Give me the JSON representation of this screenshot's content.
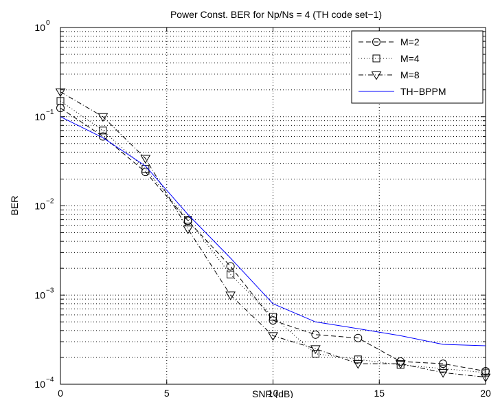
{
  "chart_data": {
    "type": "line",
    "title": "Power Const. BER for Np/Ns = 4  (TH code set−1)",
    "xlabel": "SNR (dB)",
    "ylabel": "BER",
    "xlim": [
      0,
      20
    ],
    "ylim": [
      0.0001,
      1
    ],
    "yscale": "log",
    "grid": true,
    "legend_position": "top-right",
    "x_ticks": [
      0,
      5,
      10,
      15,
      20
    ],
    "x_tick_labels": [
      "0",
      "5",
      "10",
      "15",
      "20"
    ],
    "y_ticks": [
      0.0001,
      0.001,
      0.01,
      0.1,
      1
    ],
    "y_tick_labels": [
      {
        "base": "10",
        "exp": "−4"
      },
      {
        "base": "10",
        "exp": "−3"
      },
      {
        "base": "10",
        "exp": "−2"
      },
      {
        "base": "10",
        "exp": "−1"
      },
      {
        "base": "10",
        "exp": "0"
      }
    ],
    "series": [
      {
        "name": "M=2",
        "marker": "circle",
        "line_style": "dashed",
        "color": "#000000",
        "x": [
          0,
          2,
          4,
          6,
          8,
          10,
          12,
          14,
          16,
          18,
          20
        ],
        "y": [
          0.125,
          0.06,
          0.024,
          0.0068,
          0.0021,
          0.00052,
          0.00036,
          0.00033,
          0.00018,
          0.00017,
          0.00014
        ]
      },
      {
        "name": "M=4",
        "marker": "square",
        "line_style": "dotted",
        "color": "#000000",
        "x": [
          0,
          2,
          4,
          6,
          8,
          10,
          12,
          14,
          16,
          18,
          20
        ],
        "y": [
          0.15,
          0.07,
          0.026,
          0.007,
          0.0017,
          0.00057,
          0.00022,
          0.00019,
          0.000165,
          0.00015,
          0.000135
        ]
      },
      {
        "name": "M=8",
        "marker": "triangle-down",
        "line_style": "dashdot",
        "color": "#000000",
        "x": [
          0,
          2,
          4,
          6,
          8,
          10,
          12,
          14,
          16,
          18,
          20
        ],
        "y": [
          0.19,
          0.1,
          0.034,
          0.0055,
          0.001,
          0.00035,
          0.00025,
          0.00017,
          0.00017,
          0.000135,
          0.00012
        ]
      },
      {
        "name": "TH−BPPM",
        "marker": "none",
        "line_style": "solid",
        "color": "#0000ff",
        "x": [
          0,
          2,
          4,
          6,
          8,
          10,
          12,
          14,
          16,
          18,
          20
        ],
        "y": [
          0.1,
          0.058,
          0.028,
          0.008,
          0.0026,
          0.0008,
          0.0005,
          0.00042,
          0.00035,
          0.00028,
          0.00027
        ]
      }
    ]
  }
}
